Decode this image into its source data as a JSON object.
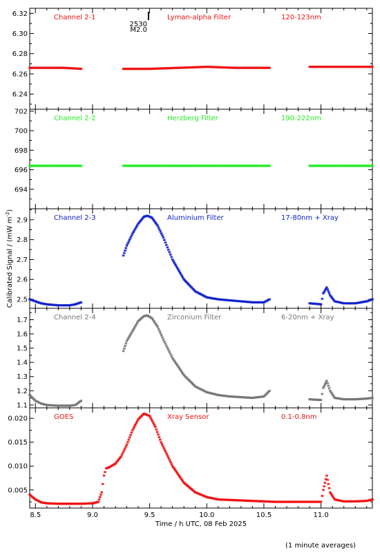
{
  "figure": {
    "xlabel": "Time / h UTC, 08 Feb 2025",
    "ylabel": "Calibrated Signal / (mW m",
    "ylabel_sup": "-2",
    "ylabel_tail": ")",
    "footnote": "(1 minute averages)",
    "flare_marker": {
      "time": "2530",
      "class": "M2.0",
      "x": 9.49
    },
    "xlim": [
      8.45,
      11.45
    ],
    "xticks": [
      "8.5",
      "9.0",
      "9.5",
      "10.0",
      "10.5",
      "11.0"
    ],
    "xtick_values": [
      8.5,
      9.0,
      9.5,
      10.0,
      10.5,
      11.0
    ]
  },
  "chart_data": [
    {
      "type": "scatter",
      "channel": "Channel 2-1",
      "filter": "Lyman-alpha Filter",
      "band": "120-123nm",
      "color": "#ee1111",
      "ylim": [
        6.225,
        6.325
      ],
      "yticks": [
        "6.24",
        "6.26",
        "6.28",
        "6.30",
        "6.32"
      ],
      "ytick_values": [
        6.24,
        6.26,
        6.28,
        6.3,
        6.32
      ],
      "segments": [
        {
          "x": [
            8.45,
            8.6,
            8.75,
            8.9
          ],
          "y": [
            6.266,
            6.266,
            6.266,
            6.265
          ]
        },
        {
          "x": [
            9.27,
            9.5,
            9.75,
            10.0,
            10.25,
            10.55
          ],
          "y": [
            6.265,
            6.265,
            6.266,
            6.267,
            6.266,
            6.266
          ]
        },
        {
          "x": [
            10.9,
            11.1,
            11.3,
            11.45
          ],
          "y": [
            6.267,
            6.267,
            6.267,
            6.267
          ]
        }
      ]
    },
    {
      "type": "scatter",
      "channel": "Channel 2-2",
      "filter": "Herzberg Filter",
      "band": "190-222nm",
      "color": "#22ee22",
      "ylim": [
        692.0,
        702.2
      ],
      "yticks": [
        "694",
        "696",
        "698",
        "700",
        "702"
      ],
      "ytick_values": [
        694,
        696,
        698,
        700,
        702
      ],
      "segments": [
        {
          "x": [
            8.45,
            8.9
          ],
          "y": [
            696.4,
            696.4
          ]
        },
        {
          "x": [
            9.27,
            10.55
          ],
          "y": [
            696.4,
            696.4
          ]
        },
        {
          "x": [
            10.9,
            11.45
          ],
          "y": [
            696.4,
            696.4
          ]
        }
      ]
    },
    {
      "type": "scatter",
      "channel": "Channel 2-3",
      "filter": "Aluminium Filter",
      "band": "17-80nm + Xray",
      "color": "#1122cc",
      "ylim": [
        2.455,
        2.955
      ],
      "yticks": [
        "2.5",
        "2.6",
        "2.7",
        "2.8",
        "2.9"
      ],
      "ytick_values": [
        2.5,
        2.6,
        2.7,
        2.8,
        2.9
      ],
      "segments": [
        {
          "x": [
            8.45,
            8.5,
            8.55,
            8.6,
            8.7,
            8.8,
            8.85,
            8.9
          ],
          "y": [
            2.5,
            2.49,
            2.48,
            2.475,
            2.47,
            2.47,
            2.475,
            2.485
          ]
        },
        {
          "x": [
            9.27,
            9.3,
            9.35,
            9.4,
            9.45,
            9.48,
            9.52,
            9.57,
            9.62,
            9.7,
            9.8,
            9.9,
            10.0,
            10.1,
            10.2,
            10.3,
            10.4,
            10.5,
            10.55
          ],
          "y": [
            2.72,
            2.77,
            2.83,
            2.88,
            2.915,
            2.92,
            2.91,
            2.87,
            2.81,
            2.7,
            2.6,
            2.54,
            2.51,
            2.5,
            2.495,
            2.49,
            2.485,
            2.485,
            2.5
          ]
        },
        {
          "x": [
            10.9,
            11.0,
            11.02,
            11.05,
            11.08,
            11.12,
            11.2,
            11.3,
            11.4,
            11.45
          ],
          "y": [
            2.48,
            2.475,
            2.53,
            2.56,
            2.52,
            2.49,
            2.48,
            2.48,
            2.49,
            2.5
          ]
        }
      ]
    },
    {
      "type": "scatter",
      "channel": "Channel 2-4",
      "filter": "Zirconium Filter",
      "band": "6-20nm + Xray",
      "color": "#777777",
      "ylim": [
        1.08,
        1.78
      ],
      "yticks": [
        "1.1",
        "1.2",
        "1.3",
        "1.4",
        "1.5",
        "1.6",
        "1.7"
      ],
      "ytick_values": [
        1.1,
        1.2,
        1.3,
        1.4,
        1.5,
        1.6,
        1.7
      ],
      "segments": [
        {
          "x": [
            8.45,
            8.5,
            8.55,
            8.6,
            8.7,
            8.8,
            8.85,
            8.9
          ],
          "y": [
            1.17,
            1.13,
            1.11,
            1.1,
            1.095,
            1.095,
            1.1,
            1.13
          ]
        },
        {
          "x": [
            9.27,
            9.3,
            9.35,
            9.4,
            9.45,
            9.48,
            9.52,
            9.57,
            9.62,
            9.7,
            9.8,
            9.9,
            10.0,
            10.1,
            10.2,
            10.3,
            10.4,
            10.5,
            10.55
          ],
          "y": [
            1.48,
            1.55,
            1.62,
            1.69,
            1.725,
            1.73,
            1.71,
            1.65,
            1.56,
            1.43,
            1.31,
            1.23,
            1.19,
            1.17,
            1.16,
            1.155,
            1.15,
            1.16,
            1.2
          ]
        },
        {
          "x": [
            10.9,
            11.0,
            11.02,
            11.05,
            11.08,
            11.12,
            11.2,
            11.3,
            11.4,
            11.45
          ],
          "y": [
            1.14,
            1.135,
            1.22,
            1.27,
            1.2,
            1.15,
            1.14,
            1.14,
            1.145,
            1.15
          ]
        }
      ]
    },
    {
      "type": "scatter",
      "channel": "GOES",
      "filter": "Xray Sensor",
      "band": "0.1-0.8nm",
      "color": "#ee1111",
      "ylim": [
        0.0012,
        0.0222
      ],
      "yticks": [
        "0.005",
        "0.010",
        "0.015",
        "0.020"
      ],
      "ytick_values": [
        0.005,
        0.01,
        0.015,
        0.02
      ],
      "segments": [
        {
          "x": [
            8.45,
            8.5,
            8.55,
            8.6,
            8.7,
            8.8,
            8.9,
            9.0,
            9.05,
            9.08,
            9.1,
            9.12,
            9.15,
            9.2,
            9.25,
            9.3,
            9.35,
            9.4,
            9.45,
            9.5,
            9.55,
            9.6,
            9.7,
            9.8,
            9.9,
            10.0,
            10.1,
            10.2,
            10.3,
            10.4,
            10.5,
            10.6,
            10.7,
            10.8,
            10.9,
            11.0,
            11.02,
            11.05,
            11.08,
            11.12,
            11.2,
            11.3,
            11.4,
            11.45
          ],
          "y": [
            0.004,
            0.003,
            0.0024,
            0.0022,
            0.0021,
            0.0021,
            0.0021,
            0.0022,
            0.0025,
            0.0045,
            0.008,
            0.0095,
            0.0098,
            0.0105,
            0.012,
            0.0145,
            0.0175,
            0.0198,
            0.021,
            0.0205,
            0.0182,
            0.015,
            0.01,
            0.0065,
            0.0045,
            0.0035,
            0.003,
            0.0029,
            0.0028,
            0.0027,
            0.0026,
            0.0025,
            0.0025,
            0.0025,
            0.0025,
            0.0025,
            0.005,
            0.008,
            0.0045,
            0.003,
            0.0026,
            0.0026,
            0.0027,
            0.003
          ]
        }
      ]
    }
  ]
}
